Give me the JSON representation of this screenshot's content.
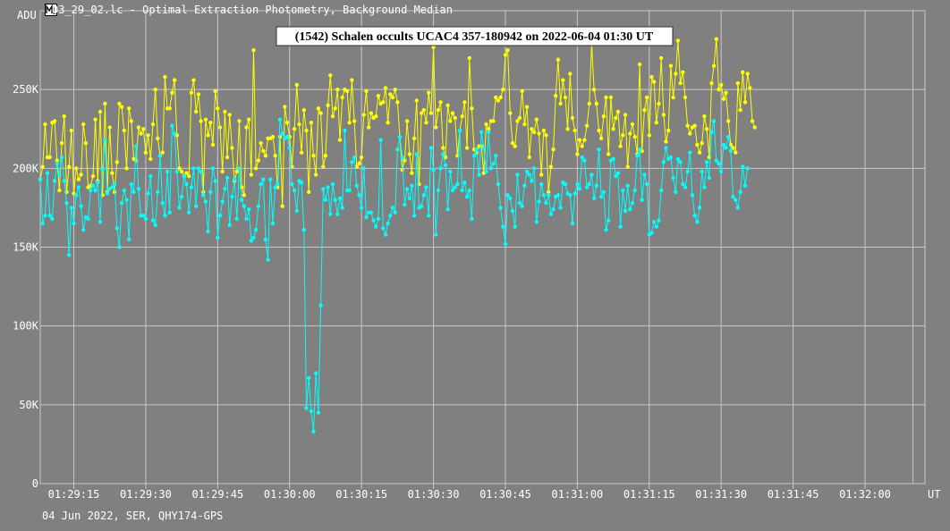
{
  "window": {
    "title": "03_29_02.lc - Optimal Extraction Photometry, Background Median",
    "icon": "light-curve-app-icon"
  },
  "footer": {
    "text": "04 Jun 2022, SER, QHY174-GPS"
  },
  "colors": {
    "background": "#808080",
    "grid": "#c8c8c8",
    "target_series": "#00ffff",
    "comparison_series": "#ffff00",
    "axis_text": "#ffffff"
  },
  "chart_data": {
    "type": "line",
    "title": "(1542) Schalen occults UCAC4 357-180942 on 2022-06-04 01:30 UT",
    "ylabel": "ADU",
    "xlabel": "UT",
    "ylim": [
      0,
      300000
    ],
    "xlim": [
      "01:29:08",
      "01:32:12.5"
    ],
    "grid": true,
    "y_ticks": [
      "0",
      "50K",
      "100K",
      "150K",
      "200K",
      "250K"
    ],
    "x_ticks": [
      "01:29:15",
      "01:29:30",
      "01:29:45",
      "01:30:00",
      "01:30:15",
      "01:30:30",
      "01:30:45",
      "01:31:00",
      "01:31:15",
      "01:31:30",
      "01:31:45",
      "01:32:00"
    ],
    "sample_interval_s": 0.5,
    "series": [
      {
        "values": [
          193,
          165,
          170,
          197,
          170,
          168,
          192,
          203,
          196,
          207,
          192,
          178,
          145,
          175,
          165,
          183,
          188,
          176,
          161,
          169,
          168,
          186,
          189,
          186,
          191,
          166,
          199,
          218,
          184,
          187,
          188,
          190,
          162,
          150,
          178,
          186,
          180,
          155,
          190,
          185,
          214,
          187,
          170,
          170,
          168,
          184,
          195,
          167,
          164,
          185,
          208,
          178,
          170,
          198,
          172,
          227,
          222,
          198,
          175,
          182,
          195,
          190,
          172,
          188,
          200,
          176,
          200,
          198,
          183,
          179,
          160,
          185,
          200,
          192,
          156,
          170,
          179,
          187,
          194,
          164,
          182,
          193,
          168,
          200,
          180,
          176,
          168,
          174,
          154,
          156,
          161,
          176,
          190,
          193,
          155,
          142,
          193,
          165,
          188,
          190,
          231,
          222,
          219,
          220,
          213,
          190,
          186,
          173,
          192,
          191,
          161,
          48,
          67,
          46,
          33,
          70,
          45,
          113,
          187,
          180,
          188,
          171,
          190,
          180,
          171,
          181,
          175,
          224,
          186,
          186,
          204,
          207,
          189,
          183,
          175,
          200,
          169,
          172,
          172,
          167,
          163,
          168,
          218,
          162,
          158,
          165,
          170,
          175,
          172,
          212,
          220,
          207,
          177,
          187,
          181,
          189,
          170,
          209,
          175,
          176,
          183,
          188,
          170,
          213,
          199,
          158,
          186,
          200,
          209,
          202,
          174,
          198,
          186,
          188,
          190,
          224,
          186,
          191,
          182,
          186,
          168,
          208,
          212,
          196,
          223,
          213,
          198,
          223,
          200,
          203,
          208,
          190,
          175,
          163,
          152,
          183,
          181,
          173,
          163,
          196,
          178,
          176,
          189,
          198,
          196,
          192,
          200,
          166,
          179,
          190,
          183,
          178,
          183,
          171,
          174,
          182,
          183,
          175,
          191,
          190,
          184,
          183,
          165,
          184,
          190,
          187,
          207,
          205,
          188,
          190,
          196,
          181,
          189,
          212,
          182,
          185,
          161,
          167,
          205,
          206,
          195,
          197,
          163,
          186,
          173,
          189,
          174,
          178,
          186,
          208,
          212,
          180,
          196,
          190,
          158,
          159,
          166,
          163,
          167,
          186,
          204,
          213,
          206,
          207,
          194,
          185,
          206,
          204,
          190,
          188,
          198,
          210,
          183,
          170,
          166,
          175,
          198,
          188,
          204,
          194,
          223,
          230,
          205,
          203,
          198,
          215,
          213,
          220,
          211,
          182,
          180,
          175,
          185,
          201,
          189,
          200
        ]
      },
      {
        "values": [
          193,
          201,
          228,
          207,
          207,
          229,
          230,
          205,
          186,
          216,
          233,
          185,
          201,
          224,
          184,
          200,
          193,
          196,
          228,
          216,
          188,
          189,
          195,
          231,
          192,
          236,
          183,
          241,
          185,
          226,
          197,
          185,
          204,
          241,
          239,
          224,
          200,
          238,
          230,
          206,
          205,
          226,
          222,
          225,
          210,
          221,
          206,
          228,
          250,
          219,
          208,
          210,
          258,
          238,
          238,
          248,
          256,
          221,
          200,
          198,
          195,
          197,
          195,
          248,
          256,
          236,
          247,
          230,
          185,
          231,
          221,
          229,
          215,
          249,
          238,
          226,
          198,
          236,
          207,
          234,
          213,
          192,
          198,
          230,
          188,
          183,
          226,
          231,
          196,
          275,
          200,
          205,
          216,
          211,
          208,
          219,
          219,
          220,
          208,
          188,
          220,
          176,
          239,
          229,
          220,
          201,
          225,
          253,
          228,
          210,
          237,
          224,
          185,
          229,
          208,
          196,
          238,
          235,
          201,
          208,
          240,
          259,
          233,
          238,
          250,
          218,
          245,
          250,
          249,
          229,
          256,
          230,
          201,
          203,
          207,
          234,
          249,
          226,
          235,
          232,
          233,
          246,
          241,
          242,
          251,
          229,
          247,
          245,
          250,
          242,
          220,
          199,
          205,
          230,
          209,
          197,
          219,
          243,
          190,
          235,
          237,
          229,
          248,
          235,
          277,
          226,
          237,
          242,
          213,
          207,
          240,
          230,
          235,
          232,
          208,
          224,
          233,
          242,
          213,
          270,
          238,
          212,
          210,
          214,
          214,
          197,
          228,
          225,
          230,
          230,
          245,
          243,
          245,
          250,
          272,
          275,
          235,
          216,
          214,
          230,
          232,
          249,
          228,
          239,
          207,
          225,
          223,
          231,
          222,
          196,
          224,
          221,
          185,
          201,
          212,
          246,
          269,
          241,
          256,
          245,
          225,
          260,
          232,
          224,
          209,
          218,
          214,
          218,
          227,
          241,
          279,
          250,
          241,
          224,
          219,
          233,
          245,
          209,
          245,
          225,
          232,
          236,
          214,
          221,
          234,
          201,
          222,
          228,
          220,
          209,
          266,
          211,
          237,
          245,
          221,
          258,
          255,
          229,
          241,
          270,
          234,
          217,
          224,
          265,
          245,
          260,
          281,
          254,
          261,
          245,
          227,
          222,
          226,
          227,
          215,
          210,
          216,
          233,
          225,
          207,
          254,
          265,
          282,
          250,
          253,
          244,
          248,
          230,
          215,
          213,
          210,
          254,
          237,
          261,
          242,
          260,
          251,
          230,
          226
        ]
      }
    ]
  }
}
